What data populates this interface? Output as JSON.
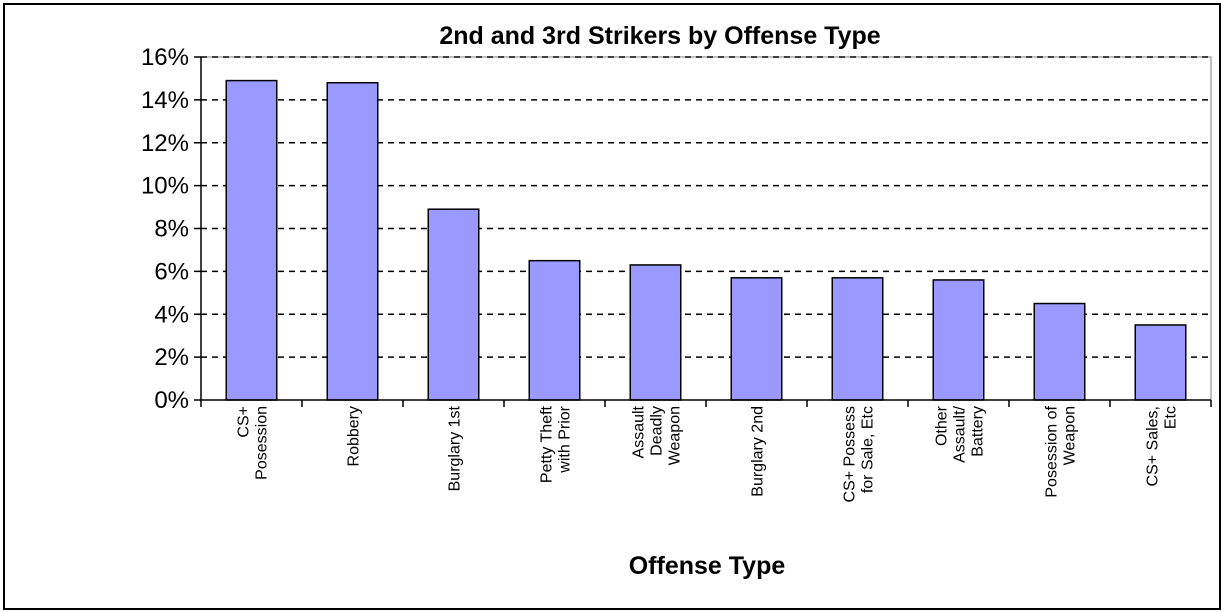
{
  "chart_data": {
    "type": "bar",
    "title": "2nd and 3rd Strikers by Offense Type",
    "xlabel": "Offense Type",
    "ylabel": "",
    "ylim": [
      0,
      16
    ],
    "y_ticks": [
      "0%",
      "2%",
      "4%",
      "6%",
      "8%",
      "10%",
      "12%",
      "14%",
      "16%"
    ],
    "y_unit": "%",
    "grid": "horizontal-dashed",
    "bar_color": "#9999ff",
    "plot_background": "#ffffff",
    "categories": [
      [
        "CS+",
        "Posession"
      ],
      [
        "Robbery"
      ],
      [
        "Burglary 1st"
      ],
      [
        "Petty Theft",
        "with Prior"
      ],
      [
        "Assault",
        "Deadly",
        "Weapon"
      ],
      [
        "Burglary 2nd"
      ],
      [
        "CS+ Possess",
        "for Sale, Etc"
      ],
      [
        "Other",
        "Assault/",
        "Battery"
      ],
      [
        "Posession of",
        "Weapon"
      ],
      [
        "CS+ Sales,",
        "Etc"
      ]
    ],
    "values": [
      14.9,
      14.8,
      8.9,
      6.5,
      6.3,
      5.7,
      5.7,
      5.6,
      4.5,
      3.5
    ]
  }
}
